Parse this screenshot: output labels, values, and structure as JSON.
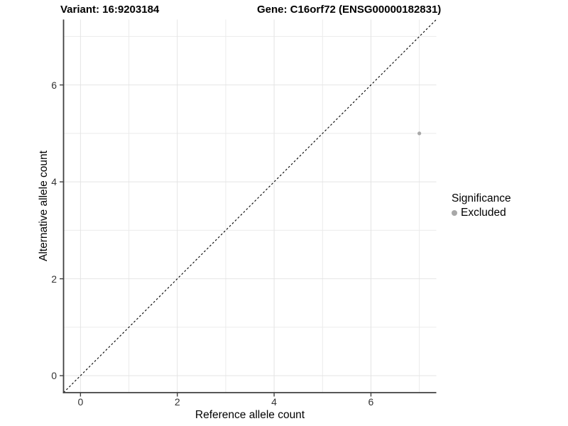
{
  "header": {
    "variant_title": "Variant: 16:9203184",
    "gene_title": "Gene: C16orf72 (ENSG00000182831)"
  },
  "chart_data": {
    "type": "scatter",
    "xlabel": "Reference allele count",
    "ylabel": "Alternative allele count",
    "xlim": [
      -0.35,
      7.35
    ],
    "ylim": [
      -0.35,
      7.35
    ],
    "x_major_ticks": [
      0,
      2,
      4,
      6
    ],
    "y_major_ticks": [
      0,
      2,
      4,
      6
    ],
    "x_tick_labels": [
      "0",
      "2",
      "4",
      "6"
    ],
    "y_tick_labels": [
      "0",
      "2",
      "4",
      "6"
    ],
    "x_minor_gridlines": [
      1,
      3,
      5,
      7
    ],
    "y_minor_gridlines": [
      1,
      3,
      5,
      7
    ],
    "grid": true,
    "points": [
      {
        "x": 7,
        "y": 5,
        "series": "Excluded"
      }
    ],
    "reference_line": {
      "type": "identity",
      "style": "dashed",
      "from": [
        -0.35,
        -0.35
      ],
      "to": [
        7.35,
        7.35
      ]
    },
    "legend": {
      "title": "Significance",
      "position": "right",
      "entries": [
        {
          "label": "Excluded",
          "color": "#a8a8a8"
        }
      ]
    },
    "colors": {
      "point": "#a8a8a8",
      "grid_major": "#e4e4e4",
      "grid_minor": "#ebebeb",
      "axis_line": "#404040",
      "tick_mark": "#404040",
      "reference_line": "#000000"
    }
  }
}
